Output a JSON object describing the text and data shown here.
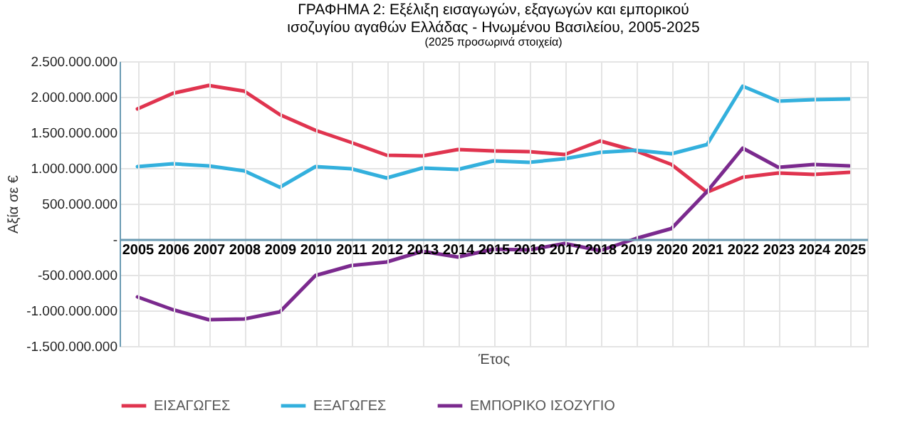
{
  "chart_data": {
    "type": "line",
    "title": "ΓΡΑΦΗΜΑ 2: Εξέλιξη εισαγωγών, εξαγωγών και εμπορικού ισοζυγίου αγαθών Ελλάδας - Ηνωμένου Βασιλείου, 2005-2025",
    "subtitle": "(2025 προσωρινά στοιχεία)",
    "xlabel": "Έτος",
    "ylabel": "Αξία σε €",
    "categories": [
      "2005",
      "2006",
      "2007",
      "2008",
      "2009",
      "2010",
      "2011",
      "2012",
      "2013",
      "2014",
      "2015",
      "2016",
      "2017",
      "2018",
      "2019",
      "2020",
      "2021",
      "2022",
      "2023",
      "2024",
      "2025"
    ],
    "series": [
      {
        "name": "ΕΙΣΑΓΩΓΕΣ",
        "color": "#e0344f",
        "values": [
          1830000000,
          2050000000,
          2160000000,
          2080000000,
          1750000000,
          1530000000,
          1360000000,
          1180000000,
          1170000000,
          1260000000,
          1240000000,
          1230000000,
          1190000000,
          1380000000,
          1240000000,
          1050000000,
          660000000,
          870000000,
          930000000,
          910000000,
          940000000
        ]
      },
      {
        "name": "ΕΞΑΓΩΓΕΣ",
        "color": "#33b0dd",
        "values": [
          1020000000,
          1060000000,
          1030000000,
          960000000,
          730000000,
          1020000000,
          990000000,
          860000000,
          1000000000,
          980000000,
          1100000000,
          1080000000,
          1130000000,
          1220000000,
          1250000000,
          1200000000,
          1330000000,
          2150000000,
          1940000000,
          1960000000,
          1970000000
        ]
      },
      {
        "name": "ΕΜΠΟΡΙΚΟ ΙΣΟΖΥΓΙΟ",
        "color": "#7b2a8e",
        "values": [
          -810000000,
          -990000000,
          -1130000000,
          -1120000000,
          -1020000000,
          -510000000,
          -370000000,
          -320000000,
          -170000000,
          -250000000,
          -140000000,
          -150000000,
          -60000000,
          -160000000,
          10000000,
          150000000,
          670000000,
          1280000000,
          1010000000,
          1050000000,
          1030000000
        ]
      }
    ],
    "ylim": [
      -1500000000,
      2500000000
    ],
    "yticks": [
      {
        "value": -1500000000,
        "label": "-1.500.000.000"
      },
      {
        "value": -1000000000,
        "label": "-1.000.000.000"
      },
      {
        "value": -500000000,
        "label": "-500.000.000"
      },
      {
        "value": 0,
        "label": "-"
      },
      {
        "value": 500000000,
        "label": "500.000.000"
      },
      {
        "value": 1000000000,
        "label": "1.000.000.000"
      },
      {
        "value": 1500000000,
        "label": "1.500.000.000"
      },
      {
        "value": 2000000000,
        "label": "2.000.000.000"
      },
      {
        "value": 2500000000,
        "label": "2.500.000.000"
      }
    ],
    "grid": true,
    "legend": "bottom",
    "marker": "none",
    "line_style": "solid"
  }
}
